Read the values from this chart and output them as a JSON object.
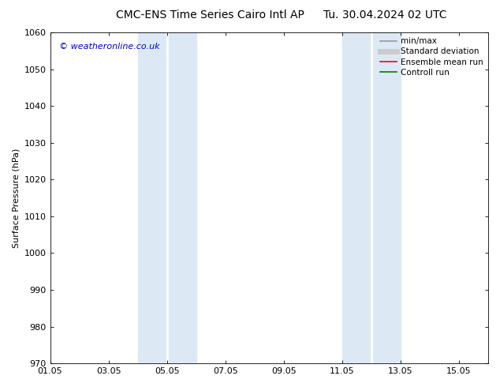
{
  "title_left": "CMC-ENS Time Series Cairo Intl AP",
  "title_right": "Tu. 30.04.2024 02 UTC",
  "ylabel": "Surface Pressure (hPa)",
  "ylim": [
    970,
    1060
  ],
  "yticks": [
    970,
    980,
    990,
    1000,
    1010,
    1020,
    1030,
    1040,
    1050,
    1060
  ],
  "xtick_positions": [
    0,
    2,
    4,
    6,
    8,
    10,
    12,
    14
  ],
  "xtick_labels": [
    "01.05",
    "03.05",
    "05.05",
    "07.05",
    "09.05",
    "11.05",
    "13.05",
    "15.05"
  ],
  "xlim": [
    0,
    15
  ],
  "shaded_bands": [
    {
      "xmin": 3.0,
      "xmax": 3.95
    },
    {
      "xmin": 4.05,
      "xmax": 5.0
    },
    {
      "xmin": 10.0,
      "xmax": 10.95
    },
    {
      "xmin": 11.05,
      "xmax": 12.0
    }
  ],
  "shade_color": "#dce9f5",
  "background_color": "#ffffff",
  "watermark_text": "© weatheronline.co.uk",
  "watermark_color": "#0000cc",
  "legend_items": [
    {
      "label": "min/max",
      "color": "#999999",
      "lw": 1.2
    },
    {
      "label": "Standard deviation",
      "color": "#cccccc",
      "lw": 5
    },
    {
      "label": "Ensemble mean run",
      "color": "#ff0000",
      "lw": 1.2
    },
    {
      "label": "Controll run",
      "color": "#008000",
      "lw": 1.2
    }
  ],
  "title_fontsize": 10,
  "axis_label_fontsize": 8,
  "tick_fontsize": 8,
  "legend_fontsize": 7.5,
  "watermark_fontsize": 8
}
